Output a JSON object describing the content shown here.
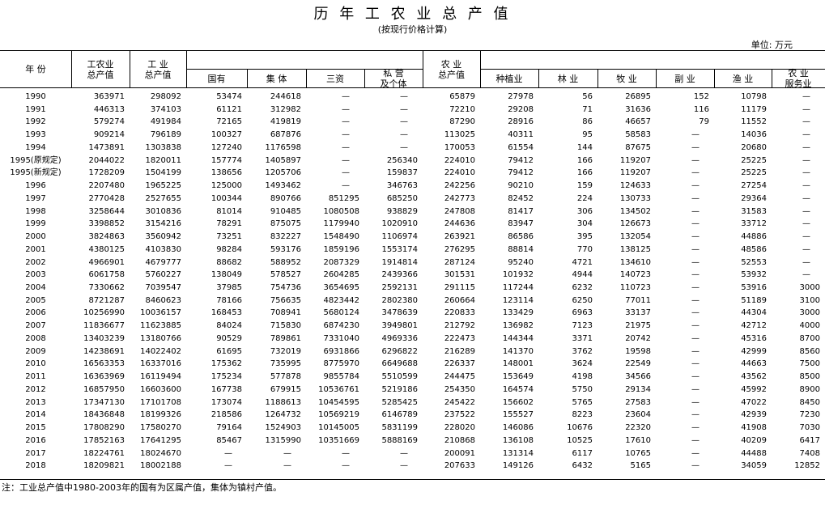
{
  "title": "历 年 工 农 业 总 产 值",
  "subtitle": "(按现行价格计算)",
  "unit": "单位: 万元",
  "header": [
    "年 份",
    "工农业\n总产值",
    "工 业\n总产值",
    "国有",
    "集 体",
    "三资",
    "私 营\n及个体",
    "农 业\n总产值",
    "种植业",
    "林 业",
    "牧 业",
    "副 业",
    "渔 业",
    "农 业\n服务业"
  ],
  "rows": [
    [
      "1990",
      363971,
      298092,
      53474,
      244618,
      "—",
      "—",
      65879,
      27978,
      56,
      26895,
      152,
      10798,
      "—"
    ],
    [
      "1991",
      446313,
      374103,
      61121,
      312982,
      "—",
      "—",
      72210,
      29208,
      71,
      31636,
      116,
      11179,
      "—"
    ],
    [
      "1992",
      579274,
      491984,
      72165,
      419819,
      "—",
      "—",
      87290,
      28916,
      86,
      46657,
      79,
      11552,
      "—"
    ],
    [
      "1993",
      909214,
      796189,
      100327,
      687876,
      "—",
      "—",
      113025,
      40311,
      95,
      58583,
      "—",
      14036,
      "—"
    ],
    [
      "1994",
      1473891,
      1303838,
      127240,
      1176598,
      "—",
      "—",
      170053,
      61554,
      144,
      87675,
      "—",
      20680,
      "—"
    ],
    [
      "1995(原规定)",
      2044022,
      1820011,
      157774,
      1405897,
      "—",
      256340,
      224010,
      79412,
      166,
      119207,
      "—",
      25225,
      "—"
    ],
    [
      "1995(新规定)",
      1728209,
      1504199,
      138656,
      1205706,
      "—",
      159837,
      224010,
      79412,
      166,
      119207,
      "—",
      25225,
      "—"
    ],
    [
      "1996",
      2207480,
      1965225,
      125000,
      1493462,
      "—",
      346763,
      242256,
      90210,
      159,
      124633,
      "—",
      27254,
      "—"
    ],
    [
      "1997",
      2770428,
      2527655,
      100344,
      890766,
      851295,
      685250,
      242773,
      82452,
      224,
      130733,
      "—",
      29364,
      "—"
    ],
    [
      "1998",
      3258644,
      3010836,
      81014,
      910485,
      1080508,
      938829,
      247808,
      81417,
      306,
      134502,
      "—",
      31583,
      "—"
    ],
    [
      "1999",
      3398852,
      3154216,
      78291,
      875075,
      1179940,
      1020910,
      244636,
      83947,
      304,
      126673,
      "—",
      33712,
      "—"
    ],
    [
      "2000",
      3824863,
      3560942,
      73251,
      832227,
      1548490,
      1106974,
      263921,
      86586,
      395,
      132054,
      "—",
      44886,
      "—"
    ],
    [
      "2001",
      4380125,
      4103830,
      98284,
      593176,
      1859196,
      1553174,
      276295,
      88814,
      770,
      138125,
      "—",
      48586,
      "—"
    ],
    [
      "2002",
      4966901,
      4679777,
      88682,
      588952,
      2087329,
      1914814,
      287124,
      95240,
      4721,
      134610,
      "—",
      52553,
      "—"
    ],
    [
      "2003",
      6061758,
      5760227,
      138049,
      578527,
      2604285,
      2439366,
      301531,
      101932,
      4944,
      140723,
      "—",
      53932,
      "—"
    ],
    [
      "2004",
      7330662,
      7039547,
      37985,
      754736,
      3654695,
      2592131,
      291115,
      117244,
      6232,
      110723,
      "—",
      53916,
      3000
    ],
    [
      "2005",
      8721287,
      8460623,
      78166,
      756635,
      4823442,
      2802380,
      260664,
      123114,
      6250,
      77011,
      "—",
      51189,
      3100
    ],
    [
      "2006",
      10256990,
      10036157,
      168453,
      708941,
      5680124,
      3478639,
      220833,
      133429,
      6963,
      33137,
      "—",
      44304,
      3000
    ],
    [
      "2007",
      11836677,
      11623885,
      84024,
      715830,
      6874230,
      3949801,
      212792,
      136982,
      7123,
      21975,
      "—",
      42712,
      4000
    ],
    [
      "2008",
      13403239,
      13180766,
      90529,
      789861,
      7331040,
      4969336,
      222473,
      144344,
      3371,
      20742,
      "—",
      45316,
      8700
    ],
    [
      "2009",
      14238691,
      14022402,
      61695,
      732019,
      6931866,
      6296822,
      216289,
      141370,
      3762,
      19598,
      "—",
      42999,
      8560
    ],
    [
      "2010",
      16563353,
      16337016,
      175362,
      735995,
      8775970,
      6649688,
      226337,
      148001,
      3624,
      22549,
      "—",
      44663,
      7500
    ],
    [
      "2011",
      16363969,
      16119494,
      175234,
      577878,
      9855784,
      5510599,
      244475,
      153649,
      4198,
      34566,
      "—",
      43562,
      8500
    ],
    [
      "2012",
      16857950,
      16603600,
      167738,
      679915,
      10536761,
      5219186,
      254350,
      164574,
      5750,
      29134,
      "—",
      45992,
      8900
    ],
    [
      "2013",
      17347130,
      17101708,
      173074,
      1188613,
      10454595,
      5285425,
      245422,
      156602,
      5765,
      27583,
      "—",
      47022,
      8450
    ],
    [
      "2014",
      18436848,
      18199326,
      218586,
      1264732,
      10569219,
      6146789,
      237522,
      155527,
      8223,
      23604,
      "—",
      42939,
      7230
    ],
    [
      "2015",
      17808290,
      17580270,
      79164,
      1524903,
      10145005,
      5831199,
      228020,
      146086,
      10676,
      22320,
      "—",
      41908,
      7030
    ],
    [
      "2016",
      17852163,
      17641295,
      85467,
      1315990,
      10351669,
      5888169,
      210868,
      136108,
      10525,
      17610,
      "—",
      40209,
      6417
    ],
    [
      "2017",
      18224761,
      18024670,
      "—",
      "—",
      "—",
      "—",
      200091,
      131314,
      6117,
      10765,
      "—",
      44488,
      7408
    ],
    [
      "2018",
      18209821,
      18002188,
      "—",
      "—",
      "—",
      "—",
      207633,
      149126,
      6432,
      5165,
      "—",
      34059,
      12852
    ]
  ],
  "note": "注：工业总产值中1980-2003年的国有为区属产值，集体为镇村产值。"
}
